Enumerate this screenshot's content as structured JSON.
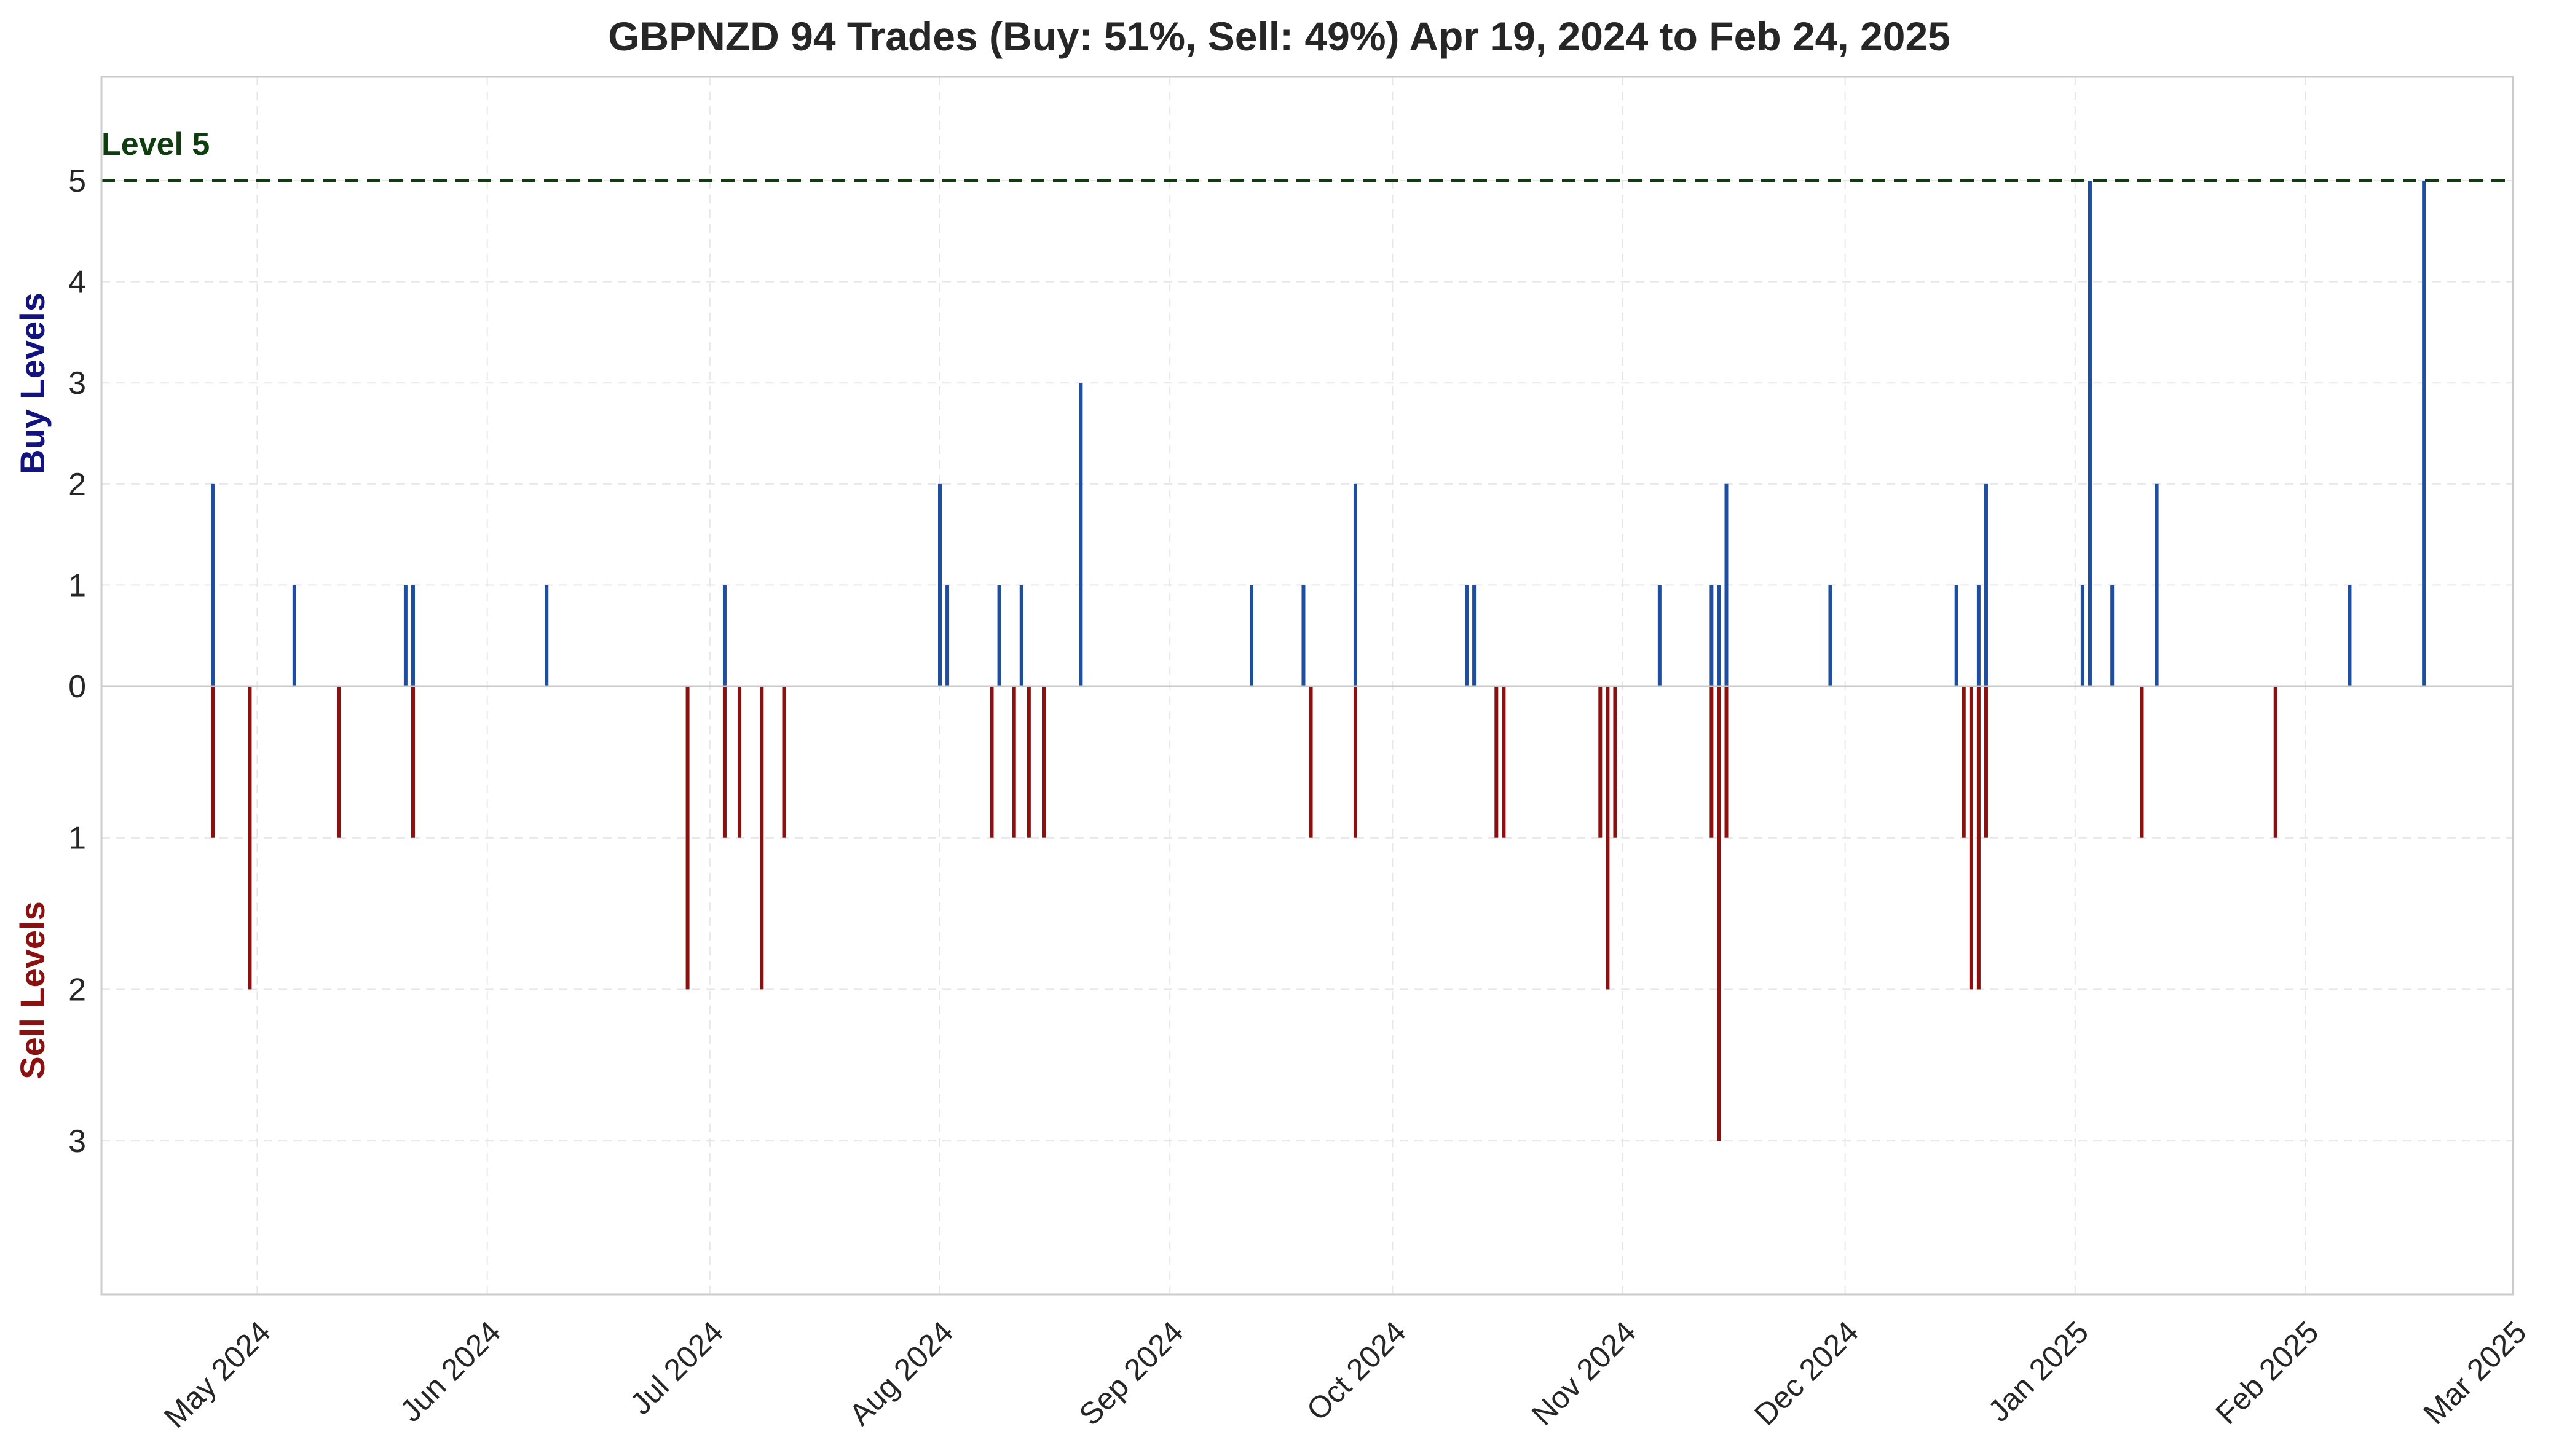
{
  "chart_data": {
    "type": "bar",
    "title": "GBPNZD 94 Trades (Buy: 51%, Sell: 49%) Apr 19, 2024 to Feb 24, 2025",
    "buy_axis_label": "Buy Levels",
    "sell_axis_label": "Sell Levels",
    "reference_line": {
      "level": 5,
      "label": "Level 5"
    },
    "x_range": [
      "2024-04-10",
      "2025-03-01"
    ],
    "buy_ylim": [
      0,
      5
    ],
    "sell_ylim": [
      0,
      3
    ],
    "grid": true,
    "x_ticks": [
      {
        "date": "2024-05-01",
        "label": "May 2024"
      },
      {
        "date": "2024-06-01",
        "label": "Jun 2024"
      },
      {
        "date": "2024-07-01",
        "label": "Jul 2024"
      },
      {
        "date": "2024-08-01",
        "label": "Aug 2024"
      },
      {
        "date": "2024-09-01",
        "label": "Sep 2024"
      },
      {
        "date": "2024-10-01",
        "label": "Oct 2024"
      },
      {
        "date": "2024-11-01",
        "label": "Nov 2024"
      },
      {
        "date": "2024-12-01",
        "label": "Dec 2024"
      },
      {
        "date": "2025-01-01",
        "label": "Jan 2025"
      },
      {
        "date": "2025-02-01",
        "label": "Feb 2025"
      },
      {
        "date": "2025-03-01",
        "label": "Mar 2025"
      }
    ],
    "buy_ticks": [
      "0",
      "1",
      "2",
      "3",
      "4",
      "5"
    ],
    "sell_ticks": [
      "1",
      "2",
      "3"
    ],
    "series": [
      {
        "name": "Buy",
        "color": "#1f4e9e",
        "points": [
          [
            "2024-04-25",
            2
          ],
          [
            "2024-05-06",
            1
          ],
          [
            "2024-05-21",
            1
          ],
          [
            "2024-05-22",
            1
          ],
          [
            "2024-06-09",
            1
          ],
          [
            "2024-07-03",
            1
          ],
          [
            "2024-08-01",
            2
          ],
          [
            "2024-08-02",
            1
          ],
          [
            "2024-08-09",
            1
          ],
          [
            "2024-08-12",
            1
          ],
          [
            "2024-08-20",
            3
          ],
          [
            "2024-09-12",
            1
          ],
          [
            "2024-09-19",
            1
          ],
          [
            "2024-09-26",
            2
          ],
          [
            "2024-10-11",
            1
          ],
          [
            "2024-10-12",
            1
          ],
          [
            "2024-11-06",
            1
          ],
          [
            "2024-11-13",
            1
          ],
          [
            "2024-11-14",
            1
          ],
          [
            "2024-11-15",
            2
          ],
          [
            "2024-11-29",
            1
          ],
          [
            "2024-12-16",
            1
          ],
          [
            "2024-12-19",
            1
          ],
          [
            "2024-12-20",
            2
          ],
          [
            "2025-01-02",
            1
          ],
          [
            "2025-01-03",
            5
          ],
          [
            "2025-01-06",
            1
          ],
          [
            "2025-01-12",
            2
          ],
          [
            "2025-02-07",
            1
          ],
          [
            "2025-02-17",
            5
          ]
        ]
      },
      {
        "name": "Sell",
        "color": "#8b1010",
        "points": [
          [
            "2024-04-25",
            1
          ],
          [
            "2024-04-30",
            2
          ],
          [
            "2024-05-12",
            1
          ],
          [
            "2024-05-22",
            1
          ],
          [
            "2024-06-28",
            2
          ],
          [
            "2024-07-03",
            1
          ],
          [
            "2024-07-05",
            1
          ],
          [
            "2024-07-08",
            2
          ],
          [
            "2024-07-11",
            1
          ],
          [
            "2024-08-08",
            1
          ],
          [
            "2024-08-11",
            1
          ],
          [
            "2024-08-13",
            1
          ],
          [
            "2024-08-15",
            1
          ],
          [
            "2024-09-20",
            1
          ],
          [
            "2024-09-26",
            1
          ],
          [
            "2024-10-15",
            1
          ],
          [
            "2024-10-16",
            1
          ],
          [
            "2024-10-29",
            1
          ],
          [
            "2024-10-30",
            2
          ],
          [
            "2024-10-31",
            1
          ],
          [
            "2024-11-13",
            1
          ],
          [
            "2024-11-14",
            3
          ],
          [
            "2024-11-15",
            1
          ],
          [
            "2024-12-17",
            1
          ],
          [
            "2024-12-18",
            2
          ],
          [
            "2024-12-19",
            2
          ],
          [
            "2024-12-20",
            1
          ],
          [
            "2025-01-10",
            1
          ],
          [
            "2025-01-28",
            1
          ]
        ]
      }
    ]
  }
}
